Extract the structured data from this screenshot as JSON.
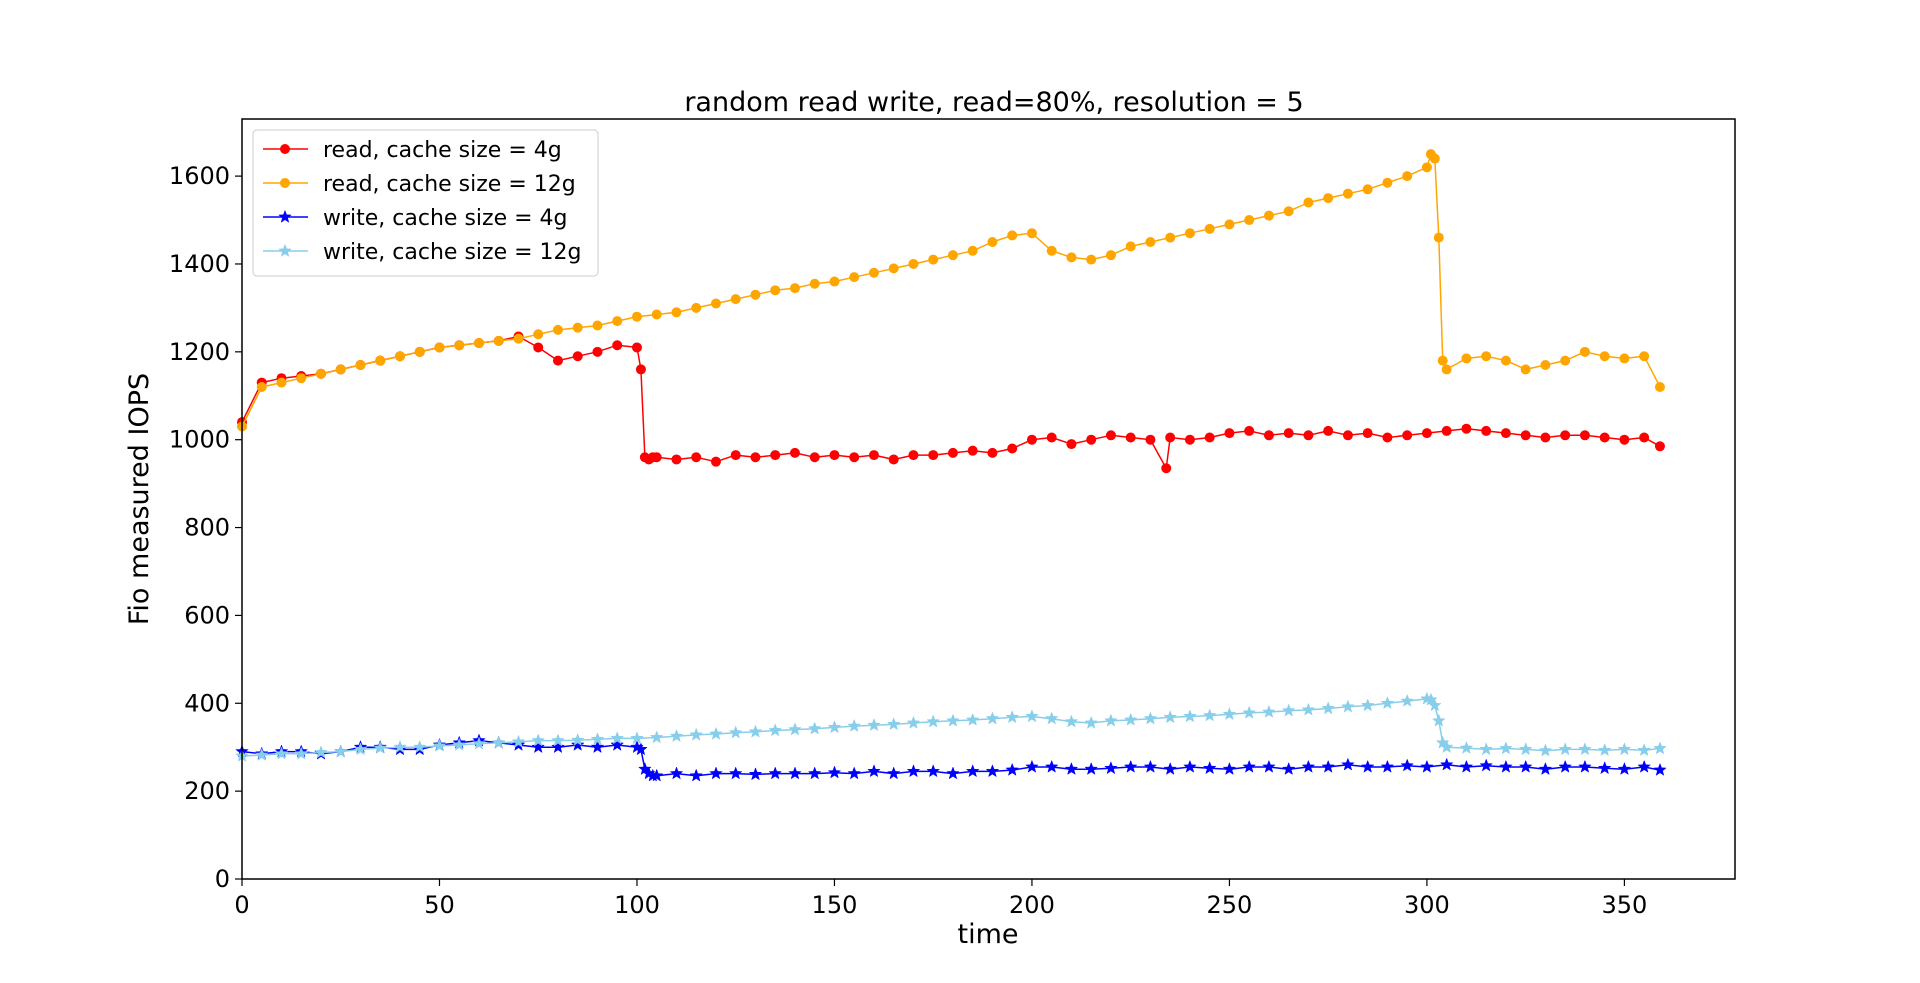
{
  "chart_data": {
    "type": "line",
    "title": "random read write, read=80%, resolution = 5",
    "xlabel": "time",
    "ylabel": "Fio measured IOPS",
    "xlim": [
      0,
      378
    ],
    "ylim": [
      0,
      1730
    ],
    "xticks": [
      0,
      50,
      100,
      150,
      200,
      250,
      300,
      350
    ],
    "yticks": [
      0,
      200,
      400,
      600,
      800,
      1000,
      1200,
      1400,
      1600
    ],
    "grid": false,
    "legend_position": "top-left",
    "series": [
      {
        "name": "read, cache size = 4g",
        "color": "#ff0000",
        "marker": "circle",
        "x": [
          0,
          5,
          10,
          15,
          20,
          25,
          30,
          35,
          40,
          45,
          50,
          55,
          60,
          65,
          70,
          75,
          80,
          85,
          90,
          95,
          100,
          101,
          102,
          103,
          104,
          105,
          110,
          115,
          120,
          125,
          130,
          135,
          140,
          145,
          150,
          155,
          160,
          165,
          170,
          175,
          180,
          185,
          190,
          195,
          200,
          205,
          210,
          215,
          220,
          225,
          230,
          234,
          235,
          240,
          245,
          250,
          255,
          260,
          265,
          270,
          275,
          280,
          285,
          290,
          295,
          300,
          305,
          310,
          315,
          320,
          325,
          330,
          335,
          340,
          345,
          350,
          355,
          359
        ],
        "y": [
          1040,
          1130,
          1140,
          1145,
          1150,
          1160,
          1170,
          1180,
          1190,
          1200,
          1210,
          1215,
          1220,
          1225,
          1235,
          1210,
          1180,
          1190,
          1200,
          1215,
          1210,
          1160,
          960,
          955,
          960,
          960,
          955,
          960,
          950,
          965,
          960,
          965,
          970,
          960,
          965,
          960,
          965,
          955,
          965,
          965,
          970,
          975,
          970,
          980,
          1000,
          1005,
          990,
          1000,
          1010,
          1005,
          1000,
          935,
          1005,
          1000,
          1005,
          1015,
          1020,
          1010,
          1015,
          1010,
          1020,
          1010,
          1015,
          1005,
          1010,
          1015,
          1020,
          1025,
          1020,
          1015,
          1010,
          1005,
          1010,
          1010,
          1005,
          1000,
          1005,
          985
        ]
      },
      {
        "name": "read, cache size = 12g",
        "color": "#ffa500",
        "marker": "circle",
        "x": [
          0,
          5,
          10,
          15,
          20,
          25,
          30,
          35,
          40,
          45,
          50,
          55,
          60,
          65,
          70,
          75,
          80,
          85,
          90,
          95,
          100,
          105,
          110,
          115,
          120,
          125,
          130,
          135,
          140,
          145,
          150,
          155,
          160,
          165,
          170,
          175,
          180,
          185,
          190,
          195,
          200,
          205,
          210,
          215,
          220,
          225,
          230,
          235,
          240,
          245,
          250,
          255,
          260,
          265,
          270,
          275,
          280,
          285,
          290,
          295,
          300,
          301,
          302,
          303,
          304,
          305,
          310,
          315,
          320,
          325,
          330,
          335,
          340,
          345,
          350,
          355,
          359
        ],
        "y": [
          1030,
          1120,
          1130,
          1140,
          1150,
          1160,
          1170,
          1180,
          1190,
          1200,
          1210,
          1215,
          1220,
          1225,
          1230,
          1240,
          1250,
          1255,
          1260,
          1270,
          1280,
          1285,
          1290,
          1300,
          1310,
          1320,
          1330,
          1340,
          1345,
          1355,
          1360,
          1370,
          1380,
          1390,
          1400,
          1410,
          1420,
          1430,
          1450,
          1465,
          1470,
          1430,
          1415,
          1410,
          1420,
          1440,
          1450,
          1460,
          1470,
          1480,
          1490,
          1500,
          1510,
          1520,
          1540,
          1550,
          1560,
          1570,
          1585,
          1600,
          1620,
          1650,
          1640,
          1460,
          1180,
          1160,
          1185,
          1190,
          1180,
          1160,
          1170,
          1180,
          1200,
          1190,
          1185,
          1190,
          1120
        ]
      },
      {
        "name": "write, cache size = 4g",
        "color": "#0000ff",
        "marker": "star",
        "x": [
          0,
          5,
          10,
          15,
          20,
          25,
          30,
          35,
          40,
          45,
          50,
          55,
          60,
          65,
          70,
          75,
          80,
          85,
          90,
          95,
          100,
          101,
          102,
          103,
          104,
          105,
          110,
          115,
          120,
          125,
          130,
          135,
          140,
          145,
          150,
          155,
          160,
          165,
          170,
          175,
          180,
          185,
          190,
          195,
          200,
          205,
          210,
          215,
          220,
          225,
          230,
          235,
          240,
          245,
          250,
          255,
          260,
          265,
          270,
          275,
          280,
          285,
          290,
          295,
          300,
          305,
          310,
          315,
          320,
          325,
          330,
          335,
          340,
          345,
          350,
          355,
          359
        ],
        "y": [
          290,
          285,
          290,
          290,
          285,
          290,
          300,
          300,
          295,
          295,
          305,
          310,
          315,
          310,
          305,
          300,
          300,
          305,
          300,
          305,
          300,
          295,
          250,
          240,
          235,
          235,
          240,
          235,
          240,
          240,
          238,
          240,
          240,
          240,
          242,
          240,
          245,
          240,
          245,
          245,
          240,
          245,
          245,
          248,
          255,
          255,
          250,
          250,
          252,
          255,
          255,
          250,
          255,
          252,
          250,
          255,
          255,
          250,
          255,
          255,
          260,
          255,
          255,
          258,
          255,
          260,
          255,
          258,
          255,
          255,
          250,
          255,
          255,
          252,
          250,
          255,
          248
        ]
      },
      {
        "name": "write, cache size = 12g",
        "color": "#87ceeb",
        "marker": "star",
        "x": [
          0,
          5,
          10,
          15,
          20,
          25,
          30,
          35,
          40,
          45,
          50,
          55,
          60,
          65,
          70,
          75,
          80,
          85,
          90,
          95,
          100,
          105,
          110,
          115,
          120,
          125,
          130,
          135,
          140,
          145,
          150,
          155,
          160,
          165,
          170,
          175,
          180,
          185,
          190,
          195,
          200,
          205,
          210,
          215,
          220,
          225,
          230,
          235,
          240,
          245,
          250,
          255,
          260,
          265,
          270,
          275,
          280,
          285,
          290,
          295,
          300,
          301,
          302,
          303,
          304,
          305,
          310,
          315,
          320,
          325,
          330,
          335,
          340,
          345,
          350,
          355,
          359
        ],
        "y": [
          280,
          282,
          285,
          285,
          288,
          290,
          295,
          298,
          300,
          300,
          303,
          305,
          308,
          310,
          312,
          315,
          315,
          316,
          318,
          320,
          320,
          322,
          325,
          328,
          330,
          333,
          335,
          338,
          340,
          342,
          345,
          348,
          350,
          352,
          355,
          358,
          360,
          362,
          365,
          368,
          370,
          365,
          358,
          355,
          360,
          362,
          365,
          368,
          370,
          372,
          375,
          378,
          380,
          383,
          385,
          388,
          392,
          395,
          400,
          405,
          410,
          408,
          395,
          360,
          310,
          300,
          298,
          295,
          297,
          295,
          292,
          295,
          295,
          293,
          295,
          293,
          297
        ]
      }
    ]
  }
}
